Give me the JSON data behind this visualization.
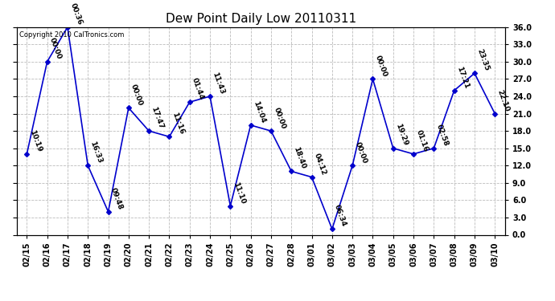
{
  "title": "Dew Point Daily Low 20110311",
  "copyright": "Copyright 2010 CalTronics.com",
  "x_labels": [
    "02/15",
    "02/16",
    "02/17",
    "02/18",
    "02/19",
    "02/20",
    "02/21",
    "02/22",
    "02/23",
    "02/24",
    "02/25",
    "02/26",
    "02/27",
    "02/28",
    "03/01",
    "03/02",
    "03/03",
    "03/04",
    "03/05",
    "03/06",
    "03/07",
    "03/08",
    "03/09",
    "03/10"
  ],
  "y_values": [
    14.0,
    30.0,
    36.0,
    12.0,
    4.0,
    22.0,
    18.0,
    17.0,
    23.0,
    24.0,
    5.0,
    19.0,
    18.0,
    11.0,
    10.0,
    1.0,
    12.0,
    27.0,
    15.0,
    14.0,
    15.0,
    25.0,
    28.0,
    21.0
  ],
  "time_labels": [
    "10:19",
    "00:00",
    "00:36",
    "16:33",
    "09:48",
    "00:00",
    "17:47",
    "11:16",
    "01:44",
    "11:43",
    "11:10",
    "14:04",
    "00:00",
    "18:40",
    "04:12",
    "06:34",
    "00:00",
    "00:00",
    "19:29",
    "01:16",
    "02:58",
    "17:21",
    "23:35",
    "22:10"
  ],
  "line_color": "#0000cc",
  "marker_color": "#0000cc",
  "bg_color": "#ffffff",
  "grid_color": "#bbbbbb",
  "ylim": [
    0.0,
    36.0
  ],
  "yticks": [
    0.0,
    3.0,
    6.0,
    9.0,
    12.0,
    15.0,
    18.0,
    21.0,
    24.0,
    27.0,
    30.0,
    33.0,
    36.0
  ],
  "title_fontsize": 11,
  "label_fontsize": 6.5,
  "tick_fontsize": 7,
  "copyright_fontsize": 6
}
